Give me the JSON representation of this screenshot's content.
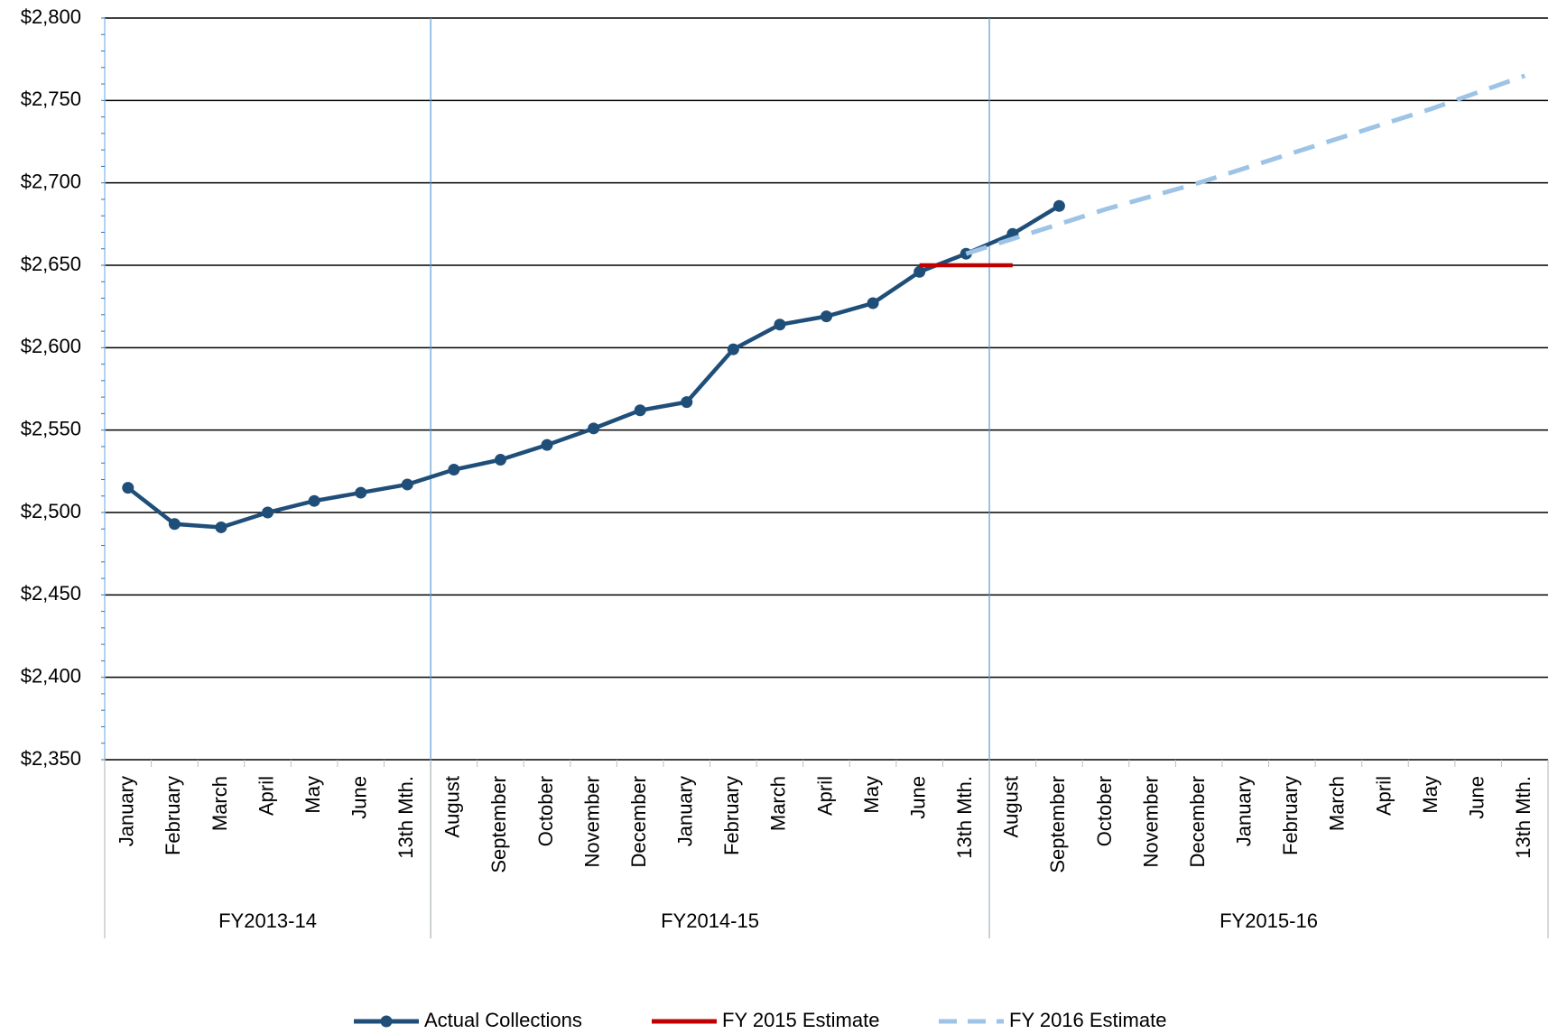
{
  "chart_data": {
    "type": "line",
    "groups": [
      {
        "name": "FY2013-14",
        "categories": [
          "January",
          "February",
          "March",
          "April",
          "May",
          "June",
          "13th Mth."
        ]
      },
      {
        "name": "FY2014-15",
        "categories": [
          "August",
          "September",
          "October",
          "November",
          "December",
          "January",
          "February",
          "March",
          "April",
          "May",
          "June",
          "13th Mth."
        ]
      },
      {
        "name": "FY2015-16",
        "categories": [
          "August",
          "September",
          "October",
          "November",
          "December",
          "January",
          "February",
          "March",
          "April",
          "May",
          "June",
          "13th Mth."
        ]
      }
    ],
    "series": [
      {
        "name": "Actual Collections",
        "color": "#1f4e79",
        "style": "solid-markers",
        "values": [
          2515,
          2493,
          2491,
          2500,
          2507,
          2512,
          2517,
          2526,
          2532,
          2541,
          2551,
          2562,
          2567,
          2599,
          2614,
          2619,
          2627,
          2646,
          2657,
          2669,
          2686,
          null,
          null,
          null,
          null,
          null,
          null,
          null,
          null,
          null,
          null
        ]
      },
      {
        "name": "FY 2015 Estimate",
        "color": "#c00000",
        "style": "solid",
        "values": [
          null,
          null,
          null,
          null,
          null,
          null,
          null,
          null,
          null,
          null,
          null,
          null,
          null,
          null,
          null,
          null,
          null,
          2650,
          2650,
          2650,
          null,
          null,
          null,
          null,
          null,
          null,
          null,
          null,
          null,
          null,
          null
        ]
      },
      {
        "name": "FY 2016 Estimate",
        "color": "#9dc3e6",
        "style": "dashed",
        "values": [
          null,
          null,
          null,
          null,
          null,
          null,
          null,
          null,
          null,
          null,
          null,
          null,
          null,
          null,
          null,
          null,
          null,
          null,
          2657,
          2666,
          2675,
          2684,
          2692,
          2700,
          2709,
          2718,
          2727,
          2736,
          2745,
          2755,
          2765
        ]
      }
    ],
    "ylim": [
      2350,
      2800
    ],
    "yticks": [
      {
        "value": 2350,
        "label": "$2,350"
      },
      {
        "value": 2400,
        "label": "$2,400"
      },
      {
        "value": 2450,
        "label": "$2,450"
      },
      {
        "value": 2500,
        "label": "$2,500"
      },
      {
        "value": 2550,
        "label": "$2,550"
      },
      {
        "value": 2600,
        "label": "$2,600"
      },
      {
        "value": 2650,
        "label": "$2,650"
      },
      {
        "value": 2700,
        "label": "$2,700"
      },
      {
        "value": 2750,
        "label": "$2,750"
      },
      {
        "value": 2800,
        "label": "$2,800"
      }
    ],
    "grid": true,
    "legend": "bottom"
  }
}
